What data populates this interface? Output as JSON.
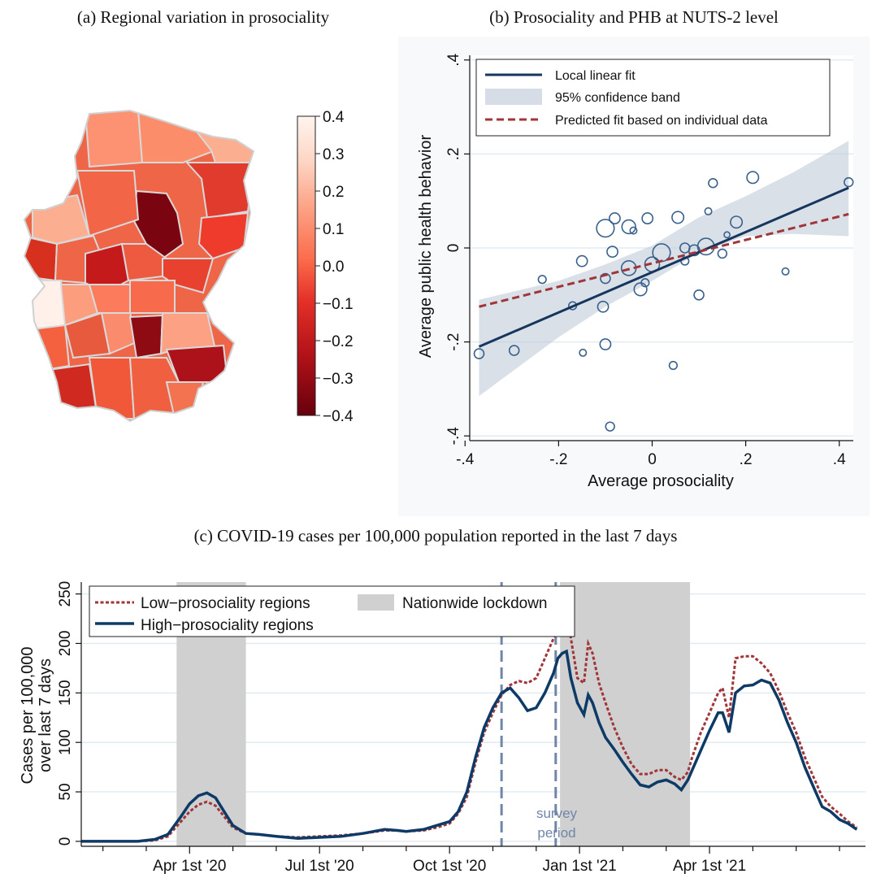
{
  "panels": {
    "a": {
      "title": "(a) Regional variation in prosociality",
      "colorbar": {
        "ticks": [
          "0.4",
          "0.3",
          "0.2",
          "0.1",
          "0.0",
          "−0.1",
          "−0.2",
          "−0.3",
          "−0.4"
        ],
        "colors": [
          "#fff5f0",
          "#fdd5c4",
          "#fca487",
          "#fb6b4b",
          "#e32f27",
          "#b11218",
          "#67000d"
        ]
      }
    },
    "b": {
      "title": "(b) Prosociality and PHB at NUTS-2 level",
      "ylabel": "Average public health behavior",
      "xlabel": "Average prosociality",
      "legend": [
        "Local linear fit",
        "95% confidence band",
        "Predicted fit based on individual data"
      ]
    },
    "c": {
      "title": "(c) COVID-19 cases per 100,000 population reported in the last 7 days",
      "ylabel_line1": "Cases per 100,000",
      "ylabel_line2": "over last 7 days",
      "legend": [
        "Low−prosociality regions",
        "Nationwide lockdown",
        "High−prosociality regions"
      ],
      "annotation_line1": "survey",
      "annotation_line2": "period"
    }
  },
  "chart_data": [
    {
      "type": "heatmap",
      "title": "(a) Regional variation in prosociality",
      "colorbar_range": [
        -0.4,
        0.4
      ],
      "colorbar_ticks": [
        0.4,
        0.3,
        0.2,
        0.1,
        0.0,
        -0.1,
        -0.2,
        -0.3,
        -0.4
      ]
    },
    {
      "type": "scatter",
      "title": "(b) Prosociality and PHB at NUTS-2 level",
      "xlabel": "Average prosociality",
      "ylabel": "Average public health behavior",
      "xlim": [
        -0.39,
        0.43
      ],
      "ylim": [
        -0.41,
        0.41
      ],
      "xticks": [
        -0.4,
        -0.2,
        0,
        0.2,
        0.4
      ],
      "xtick_labels": [
        "-.4",
        "-.2",
        "0",
        ".2",
        ".4"
      ],
      "yticks": [
        -0.4,
        -0.2,
        0,
        0.2,
        0.4
      ],
      "ytick_labels": [
        "-.4",
        "-.2",
        "0",
        ".2",
        ".4"
      ],
      "legend_position": "top",
      "points": [
        {
          "x": -0.37,
          "y": -0.225,
          "size": 1
        },
        {
          "x": -0.295,
          "y": -0.218,
          "size": 1
        },
        {
          "x": -0.235,
          "y": -0.067,
          "size": 0.8
        },
        {
          "x": -0.17,
          "y": -0.123,
          "size": 0.8
        },
        {
          "x": -0.15,
          "y": -0.028,
          "size": 1.1
        },
        {
          "x": -0.148,
          "y": -0.223,
          "size": 0.7
        },
        {
          "x": -0.105,
          "y": -0.125,
          "size": 1.1
        },
        {
          "x": -0.1,
          "y": -0.065,
          "size": 1
        },
        {
          "x": -0.1,
          "y": -0.205,
          "size": 1.1
        },
        {
          "x": -0.1,
          "y": 0.042,
          "size": 1.8
        },
        {
          "x": -0.085,
          "y": -0.008,
          "size": 1.1
        },
        {
          "x": -0.08,
          "y": 0.063,
          "size": 1.1
        },
        {
          "x": -0.09,
          "y": -0.38,
          "size": 0.9
        },
        {
          "x": -0.05,
          "y": -0.043,
          "size": 1.5
        },
        {
          "x": -0.05,
          "y": 0.045,
          "size": 1.4
        },
        {
          "x": -0.04,
          "y": 0.037,
          "size": 0.7
        },
        {
          "x": -0.025,
          "y": -0.088,
          "size": 1.3
        },
        {
          "x": -0.015,
          "y": -0.074,
          "size": 0.8
        },
        {
          "x": -0.01,
          "y": 0.063,
          "size": 1.1
        },
        {
          "x": 0.0,
          "y": -0.035,
          "size": 1.5
        },
        {
          "x": 0.02,
          "y": -0.01,
          "size": 1.8
        },
        {
          "x": 0.045,
          "y": -0.25,
          "size": 0.8
        },
        {
          "x": 0.055,
          "y": 0.065,
          "size": 1.2
        },
        {
          "x": 0.07,
          "y": 0.0,
          "size": 1
        },
        {
          "x": 0.07,
          "y": -0.028,
          "size": 0.8
        },
        {
          "x": 0.09,
          "y": -0.005,
          "size": 1.1
        },
        {
          "x": 0.1,
          "y": -0.1,
          "size": 1
        },
        {
          "x": 0.115,
          "y": 0.003,
          "size": 1.7
        },
        {
          "x": 0.12,
          "y": 0.078,
          "size": 0.7
        },
        {
          "x": 0.13,
          "y": 0.138,
          "size": 0.9
        },
        {
          "x": 0.15,
          "y": -0.012,
          "size": 0.9
        },
        {
          "x": 0.16,
          "y": 0.028,
          "size": 0.6
        },
        {
          "x": 0.18,
          "y": 0.055,
          "size": 1.2
        },
        {
          "x": 0.215,
          "y": 0.15,
          "size": 1.2
        },
        {
          "x": 0.285,
          "y": -0.05,
          "size": 0.7
        },
        {
          "x": 0.42,
          "y": 0.14,
          "size": 0.9
        }
      ],
      "series": [
        {
          "name": "Local linear fit",
          "x": [
            -0.37,
            0.42
          ],
          "y": [
            -0.21,
            0.128
          ]
        },
        {
          "name": "Predicted fit based on individual data",
          "x": [
            -0.37,
            0.42
          ],
          "y": [
            -0.125,
            0.072
          ]
        }
      ],
      "confidence_band": {
        "x": [
          -0.37,
          -0.2,
          -0.1,
          0.0,
          0.05,
          0.1,
          0.2,
          0.3,
          0.42
        ],
        "lower": [
          -0.315,
          -0.19,
          -0.125,
          -0.07,
          -0.04,
          -0.01,
          0.025,
          0.03,
          0.025
        ],
        "upper": [
          -0.11,
          -0.07,
          -0.035,
          0.005,
          0.035,
          0.065,
          0.11,
          0.16,
          0.228
        ]
      }
    },
    {
      "type": "line",
      "title": "(c) COVID-19 cases per 100,000 population reported in the last 7 days",
      "ylabel": "Cases per 100,000 over last 7 days",
      "ylim": [
        -5,
        262
      ],
      "yticks": [
        0,
        50,
        100,
        150,
        200,
        250
      ],
      "xticks": [
        {
          "month": 3,
          "label": "Apr 1st '20"
        },
        {
          "month": 6,
          "label": "Jul 1st '20"
        },
        {
          "month": 9,
          "label": "Oct 1st '20"
        },
        {
          "month": 12,
          "label": "Jan 1st '21"
        },
        {
          "month": 15,
          "label": "Apr 1st '21"
        }
      ],
      "x_unit": "months since Jan 1st '20",
      "xlim": [
        0.5,
        18.6
      ],
      "lockdowns": [
        [
          2.7,
          4.3
        ],
        [
          11.55,
          14.55
        ]
      ],
      "survey_period": [
        10.2,
        11.45
      ],
      "legend_position": "top-left",
      "series": [
        {
          "name": "High−prosociality regions",
          "x": [
            0.5,
            1.8,
            2.2,
            2.5,
            2.8,
            3.0,
            3.2,
            3.4,
            3.6,
            3.8,
            4.0,
            4.3,
            4.6,
            5.0,
            5.5,
            6.0,
            6.5,
            7.0,
            7.5,
            7.8,
            8.0,
            8.4,
            8.7,
            9.0,
            9.2,
            9.4,
            9.6,
            9.8,
            10.0,
            10.2,
            10.4,
            10.6,
            10.8,
            11.0,
            11.2,
            11.4,
            11.5,
            11.6,
            11.7,
            11.8,
            11.95,
            12.1,
            12.2,
            12.3,
            12.45,
            12.6,
            12.8,
            13.0,
            13.2,
            13.4,
            13.6,
            13.8,
            14.0,
            14.2,
            14.35,
            14.5,
            14.6,
            14.8,
            15.0,
            15.2,
            15.3,
            15.45,
            15.6,
            15.8,
            16.0,
            16.2,
            16.4,
            16.6,
            16.8,
            17.0,
            17.2,
            17.4,
            17.6,
            17.8,
            18.0,
            18.2,
            18.4
          ],
          "y": [
            0,
            0,
            2,
            7,
            25,
            38,
            46,
            49,
            44,
            30,
            16,
            8,
            7,
            5,
            3,
            4,
            5,
            8,
            12,
            11,
            10,
            12,
            16,
            20,
            30,
            50,
            85,
            115,
            135,
            150,
            155,
            145,
            132,
            135,
            150,
            170,
            185,
            190,
            192,
            165,
            140,
            128,
            148,
            140,
            120,
            105,
            93,
            80,
            68,
            57,
            55,
            60,
            62,
            58,
            52,
            62,
            72,
            92,
            112,
            130,
            130,
            110,
            150,
            157,
            158,
            163,
            160,
            143,
            120,
            100,
            75,
            55,
            35,
            30,
            22,
            18,
            12
          ]
        },
        {
          "name": "Low−prosociality regions",
          "x": [
            0.5,
            1.8,
            2.2,
            2.5,
            2.8,
            3.0,
            3.2,
            3.4,
            3.6,
            3.8,
            4.0,
            4.3,
            4.6,
            5.0,
            5.5,
            6.0,
            6.5,
            7.0,
            7.5,
            7.8,
            8.0,
            8.4,
            8.7,
            9.0,
            9.2,
            9.4,
            9.6,
            9.8,
            10.0,
            10.2,
            10.4,
            10.6,
            10.8,
            11.0,
            11.2,
            11.4,
            11.5,
            11.6,
            11.7,
            11.8,
            11.95,
            12.1,
            12.2,
            12.3,
            12.45,
            12.6,
            12.8,
            13.0,
            13.2,
            13.4,
            13.6,
            13.8,
            14.0,
            14.2,
            14.35,
            14.5,
            14.6,
            14.8,
            15.0,
            15.2,
            15.3,
            15.45,
            15.6,
            15.8,
            16.0,
            16.2,
            16.4,
            16.6,
            16.8,
            17.0,
            17.2,
            17.4,
            17.6,
            17.8,
            18.0,
            18.2,
            18.4
          ],
          "y": [
            0,
            0,
            1,
            5,
            20,
            30,
            37,
            40,
            36,
            25,
            14,
            8,
            7,
            5,
            4,
            5,
            6,
            8,
            11,
            11,
            10,
            11,
            14,
            18,
            28,
            45,
            80,
            110,
            130,
            148,
            158,
            162,
            160,
            165,
            185,
            205,
            215,
            228,
            238,
            205,
            165,
            160,
            200,
            190,
            160,
            140,
            115,
            95,
            78,
            68,
            68,
            72,
            72,
            65,
            62,
            70,
            85,
            110,
            130,
            150,
            155,
            125,
            185,
            187,
            187,
            180,
            170,
            152,
            130,
            110,
            85,
            65,
            45,
            35,
            28,
            20,
            14
          ]
        }
      ]
    }
  ]
}
